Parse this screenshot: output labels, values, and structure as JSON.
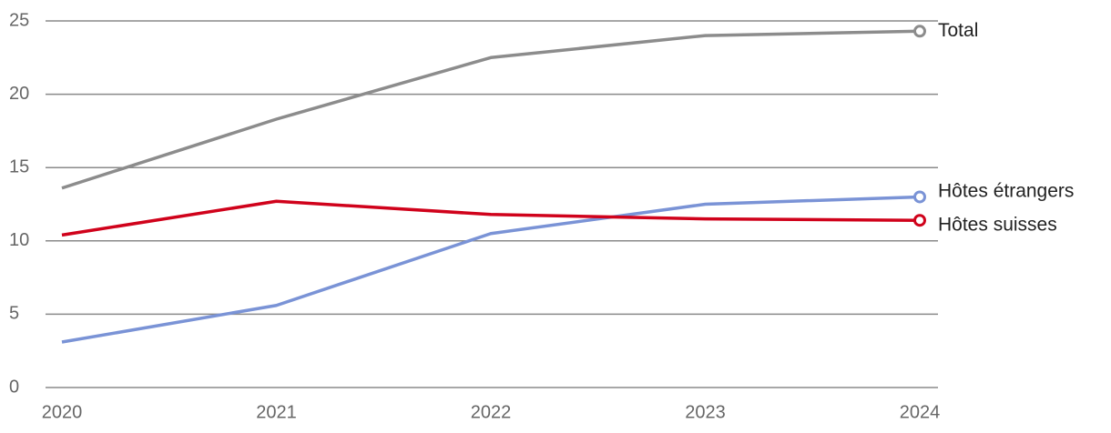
{
  "chart_data": {
    "type": "line",
    "categories": [
      "2020",
      "2021",
      "2022",
      "2023",
      "2024"
    ],
    "series": [
      {
        "name": "Total",
        "color": "#8c8c8c",
        "values": [
          13.6,
          18.3,
          22.5,
          24.0,
          24.3
        ]
      },
      {
        "name": "Hôtes étrangers",
        "color": "#7a93d6",
        "values": [
          3.1,
          5.6,
          10.5,
          12.5,
          13.0
        ]
      },
      {
        "name": "Hôtes suisses",
        "color": "#d0021b",
        "values": [
          10.4,
          12.7,
          11.8,
          11.5,
          11.4
        ]
      }
    ],
    "ylim": [
      0,
      25
    ],
    "yticks": [
      0,
      5,
      10,
      15,
      20,
      25
    ],
    "grid": true
  }
}
